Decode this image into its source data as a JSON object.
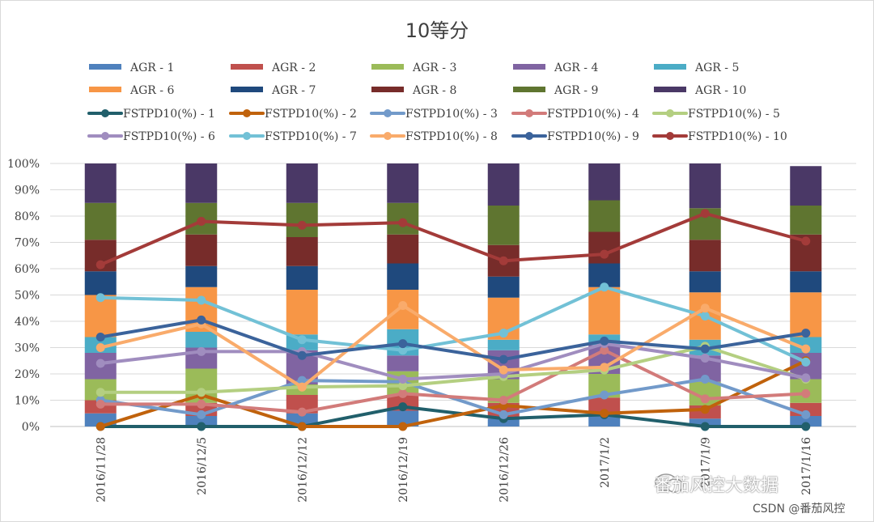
{
  "chart_data": {
    "type": "bar",
    "title": "10等分",
    "categories": [
      "2016/11/28",
      "2016/12/5",
      "2016/12/12",
      "2016/12/19",
      "2016/12/26",
      "2017/1/2",
      "2017/1/9",
      "2017/1/16"
    ],
    "y_ticks": [
      "0%",
      "10%",
      "20%",
      "30%",
      "40%",
      "50%",
      "60%",
      "70%",
      "80%",
      "90%",
      "100%"
    ],
    "ylim": [
      0,
      100
    ],
    "grid": true,
    "legend_position": "top",
    "bar_series": [
      {
        "name": "AGR - 1",
        "color": "#4f81bd",
        "values": [
          5,
          4,
          5,
          6,
          3,
          4,
          3,
          4
        ]
      },
      {
        "name": "AGR - 2",
        "color": "#c0504d",
        "values": [
          5,
          5,
          7,
          6,
          6,
          7,
          5,
          5
        ]
      },
      {
        "name": "AGR - 3",
        "color": "#9bbb59",
        "values": [
          8,
          13,
          4,
          9,
          9,
          9,
          9,
          9
        ]
      },
      {
        "name": "AGR - 4",
        "color": "#8064a2",
        "values": [
          10,
          8,
          13,
          6,
          11,
          11,
          10,
          10
        ]
      },
      {
        "name": "AGR - 5",
        "color": "#4bacc6",
        "values": [
          6,
          6,
          6,
          10,
          4,
          4,
          6,
          6
        ]
      },
      {
        "name": "AGR - 6",
        "color": "#f79646",
        "values": [
          16,
          17,
          17,
          15,
          16,
          18,
          18,
          17
        ]
      },
      {
        "name": "AGR - 7",
        "color": "#1f497d",
        "values": [
          9,
          8,
          9,
          10,
          8,
          9,
          8,
          8
        ]
      },
      {
        "name": "AGR - 8",
        "color": "#772c2a",
        "values": [
          12,
          12,
          11,
          11,
          12,
          12,
          12,
          14
        ]
      },
      {
        "name": "AGR - 9",
        "color": "#5f7530",
        "values": [
          14,
          12,
          13,
          12,
          15,
          12,
          12,
          11
        ]
      },
      {
        "name": "AGR - 10",
        "color": "#4a3866",
        "values": [
          15,
          15,
          15,
          15,
          16,
          14,
          17,
          15
        ]
      }
    ],
    "line_series": [
      {
        "name": "FSTPD10(%) - 1",
        "color": "#215f6b",
        "values": [
          0,
          0,
          0,
          7.5,
          3,
          4.5,
          0,
          0
        ]
      },
      {
        "name": "FSTPD10(%) - 2",
        "color": "#c0620c",
        "values": [
          0,
          12,
          0,
          0,
          8,
          5,
          6.5,
          25
        ]
      },
      {
        "name": "FSTPD10(%) - 3",
        "color": "#729aca",
        "values": [
          10,
          4.5,
          17.5,
          17,
          4.5,
          12,
          18,
          4.5
        ]
      },
      {
        "name": "FSTPD10(%) - 4",
        "color": "#d27b7a",
        "values": [
          8.5,
          8.5,
          5.5,
          12.5,
          10,
          29,
          10.5,
          12.5
        ]
      },
      {
        "name": "FSTPD10(%) - 5",
        "color": "#b4cf81",
        "values": [
          13,
          13,
          15,
          15.5,
          19,
          21.5,
          30.5,
          18
        ]
      },
      {
        "name": "FSTPD10(%) - 6",
        "color": "#a08dbf",
        "values": [
          24,
          28.5,
          28.5,
          18,
          20,
          31.5,
          26,
          18.5
        ]
      },
      {
        "name": "FSTPD10(%) - 7",
        "color": "#72c1d6",
        "values": [
          49,
          48,
          33,
          29,
          35.5,
          53,
          42,
          24.5
        ]
      },
      {
        "name": "FSTPD10(%) - 8",
        "color": "#f9ab6b",
        "values": [
          30,
          39,
          15,
          46,
          21.5,
          22.5,
          45,
          29.5
        ]
      },
      {
        "name": "FSTPD10(%) - 9",
        "color": "#3b639b",
        "values": [
          34,
          40.5,
          27,
          31.5,
          25.5,
          32.5,
          29.5,
          35.5
        ]
      },
      {
        "name": "FSTPD10(%) - 10",
        "color": "#a33b39",
        "values": [
          61.5,
          78,
          76.5,
          77.5,
          63,
          65.5,
          81,
          70.5
        ]
      }
    ]
  },
  "watermark": {
    "main": "番茄风控大数据",
    "sub": "CSDN @番茄风控",
    "icon": "wechat-icon"
  }
}
